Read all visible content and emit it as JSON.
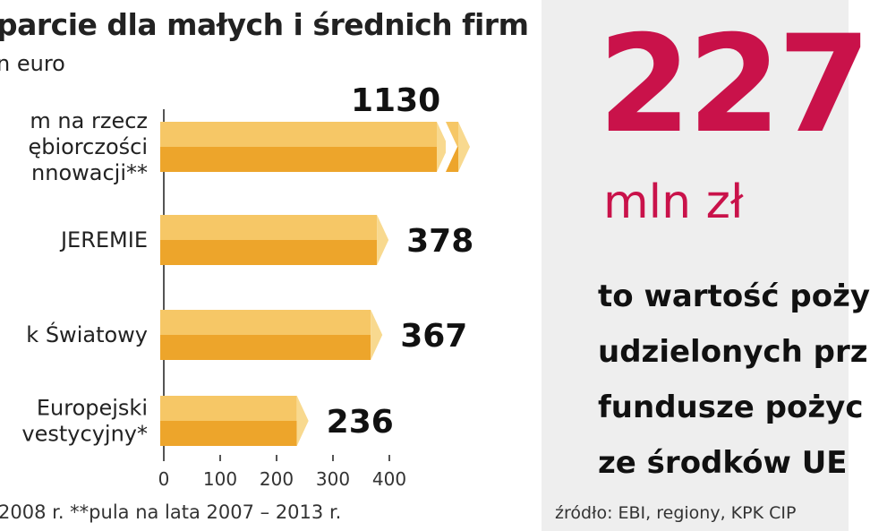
{
  "title": "parcie dla małych i średnich firm",
  "subtitle": "n euro",
  "footnote": "2008 r. **pula na lata 2007 – 2013 r.",
  "chart_data": {
    "type": "bar",
    "orientation": "horizontal",
    "title": "parcie dla małych i średnich firm",
    "unit": "n euro",
    "categories": [
      [
        "m na rzecz",
        "ębiorczości",
        "nnowacji**"
      ],
      [
        "JEREMIE"
      ],
      [
        "k Światowy"
      ],
      [
        "Europejski",
        "vestycyjny*"
      ]
    ],
    "values": [
      1130,
      378,
      367,
      236
    ],
    "value_labels": [
      "1130",
      "378",
      "367",
      "236"
    ],
    "axis_broken_for": [
      0
    ],
    "xlim": [
      0,
      400
    ],
    "xticks": [
      0,
      100,
      200,
      300,
      400
    ],
    "grid": false,
    "bar_color": "#f2b33d"
  },
  "highlight": {
    "number": "227",
    "unit": "mln zł",
    "lines": [
      "to wartość poży",
      "udzielonych prz",
      "fundusze pożyc",
      "ze środków UE"
    ],
    "color": "#c9124a"
  },
  "source": "źródło: EBI, regiony, KPK CIP"
}
